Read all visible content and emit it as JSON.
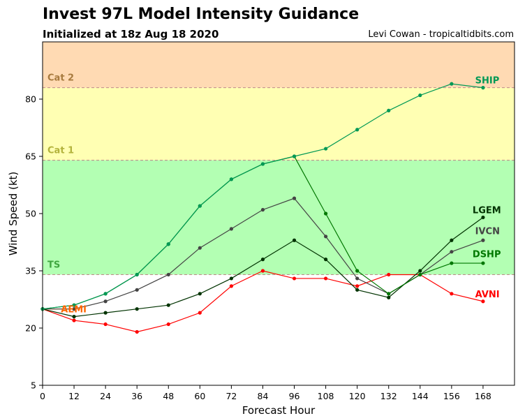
{
  "header": {
    "title": "Invest 97L Model Intensity Guidance",
    "subtitle": "Initialized at 18z Aug 18 2020",
    "credit": "Levi Cowan - tropicaltidbits.com"
  },
  "chart_data": {
    "type": "line",
    "xlabel": "Forecast Hour",
    "ylabel": "Wind Speed (kt)",
    "xlim": [
      0,
      180
    ],
    "ylim": [
      5,
      95
    ],
    "xticks": [
      0,
      12,
      24,
      36,
      48,
      60,
      72,
      84,
      96,
      108,
      120,
      132,
      144,
      156,
      168
    ],
    "yticks": [
      5,
      20,
      35,
      50,
      65,
      80
    ],
    "grid": false,
    "bands": [
      {
        "label": "TS",
        "from": 34,
        "to": 64,
        "color": "#b3ffb3",
        "label_color": "#3fa63f"
      },
      {
        "label": "Cat 1",
        "from": 64,
        "to": 83,
        "color": "#ffffb3",
        "label_color": "#b3b33c"
      },
      {
        "label": "Cat 2",
        "from": 83,
        "to": 95,
        "color": "#ffdab3",
        "label_color": "#a87b3f"
      }
    ],
    "series": [
      {
        "name": "AEMI",
        "color": "#ff6600",
        "x": [
          0,
          12
        ],
        "y": [
          25,
          25
        ]
      },
      {
        "name": "AVNI",
        "color": "#ff0000",
        "x": [
          0,
          12,
          24,
          36,
          48,
          60,
          72,
          84,
          96,
          108,
          120,
          132,
          144,
          156,
          168
        ],
        "y": [
          25,
          22,
          21,
          19,
          21,
          24,
          31,
          35,
          33,
          33,
          31,
          34,
          34,
          29,
          27
        ]
      },
      {
        "name": "IVCN",
        "color": "#444444",
        "x": [
          0,
          12,
          24,
          36,
          48,
          60,
          72,
          84,
          96,
          108,
          120,
          132,
          144,
          156,
          168
        ],
        "y": [
          25,
          25,
          27,
          30,
          34,
          41,
          46,
          51,
          54,
          44,
          33,
          29,
          34,
          40,
          43
        ]
      },
      {
        "name": "LGEM",
        "color": "#003300",
        "x": [
          0,
          12,
          24,
          36,
          48,
          60,
          72,
          84,
          96,
          108,
          120,
          132,
          144,
          156,
          168
        ],
        "y": [
          25,
          23,
          24,
          25,
          26,
          29,
          33,
          38,
          43,
          38,
          30,
          28,
          35,
          43,
          49
        ]
      },
      {
        "name": "DSHP",
        "color": "#007700",
        "x": [
          0,
          12,
          24,
          36,
          48,
          60,
          72,
          84,
          96,
          108,
          120,
          132,
          144,
          156,
          168
        ],
        "y": [
          25,
          26,
          29,
          34,
          42,
          52,
          59,
          63,
          65,
          50,
          35,
          29,
          34,
          37,
          37
        ]
      },
      {
        "name": "SHIP",
        "color": "#009955",
        "x": [
          0,
          12,
          24,
          36,
          48,
          60,
          72,
          84,
          96,
          108,
          120,
          132,
          144,
          156,
          168
        ],
        "y": [
          25,
          26,
          29,
          34,
          42,
          52,
          59,
          63,
          65,
          67,
          72,
          77,
          81,
          84,
          83
        ]
      }
    ],
    "series_labels": [
      {
        "name": "SHIP",
        "x": 165,
        "y": 85,
        "color": "#009955"
      },
      {
        "name": "LGEM",
        "x": 164,
        "y": 51,
        "color": "#003300"
      },
      {
        "name": "IVCN",
        "x": 165,
        "y": 45.5,
        "color": "#444444"
      },
      {
        "name": "DSHP",
        "x": 164,
        "y": 39.5,
        "color": "#007700"
      },
      {
        "name": "AVNI",
        "x": 165,
        "y": 29,
        "color": "#ff0000"
      },
      {
        "name": "AEMI",
        "x": 7,
        "y": 25,
        "color": "#ff6600"
      }
    ]
  }
}
